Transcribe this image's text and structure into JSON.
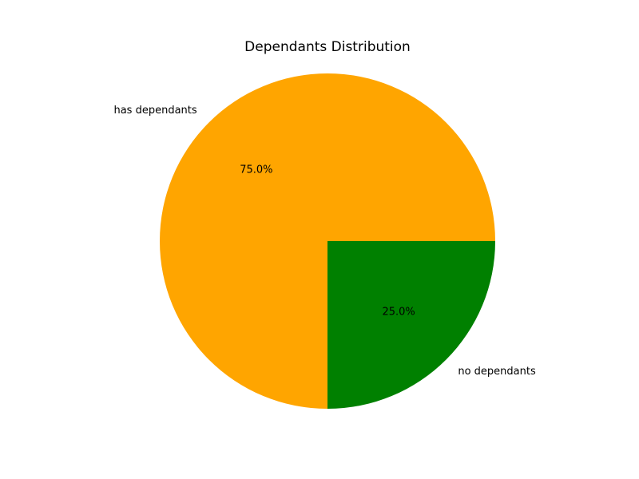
{
  "chart_data": {
    "type": "pie",
    "title": "Dependants Distribution",
    "slices": [
      {
        "label": "has dependants",
        "value": 75.0,
        "pct_label": "75.0%",
        "color": "#FFA500"
      },
      {
        "label": "no dependants",
        "value": 25.0,
        "pct_label": "25.0%",
        "color": "#008000"
      }
    ],
    "start_angle_deg": 0,
    "direction": "counterclockwise",
    "legend": "none"
  }
}
